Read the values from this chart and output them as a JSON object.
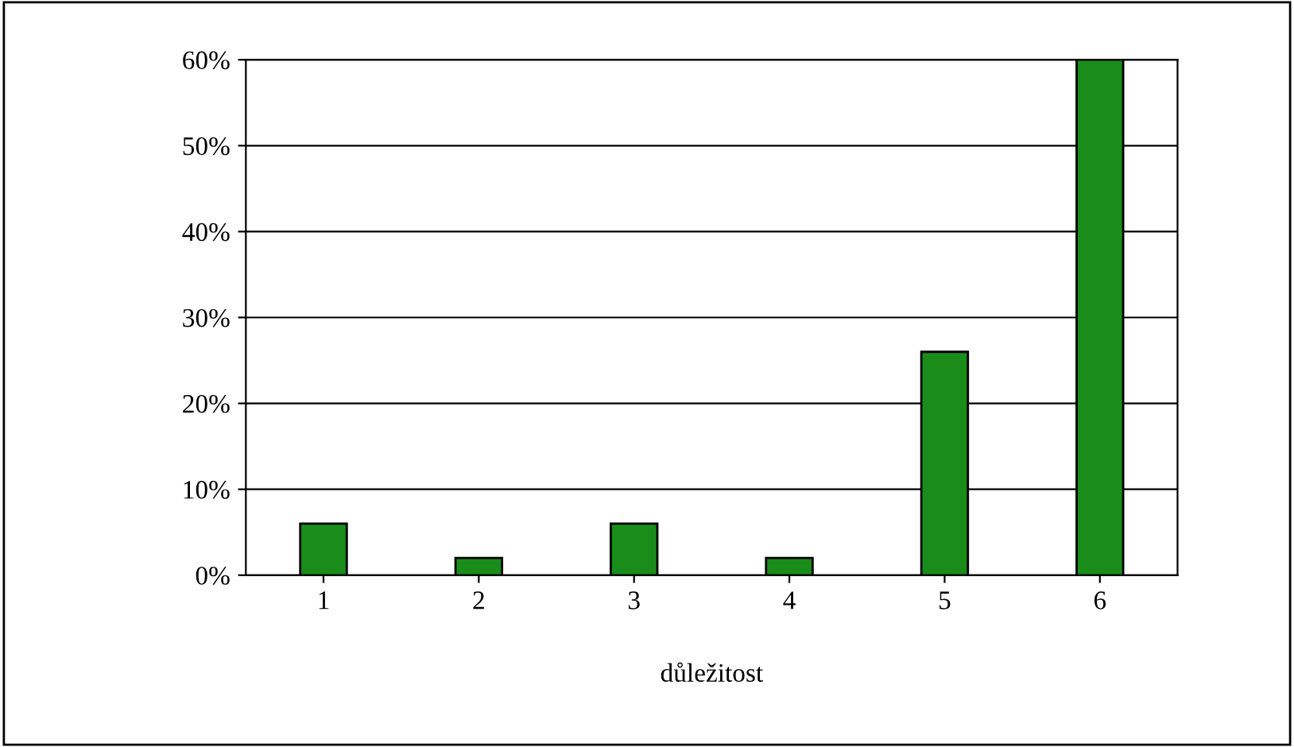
{
  "chart_data": {
    "type": "bar",
    "xlabel": "důležitost",
    "categories": [
      "1",
      "2",
      "3",
      "4",
      "5",
      "6"
    ],
    "values": [
      6,
      2,
      6,
      2,
      26,
      60
    ],
    "color": "#1a8c1a",
    "ylim": [
      0,
      60
    ],
    "yticks": [
      {
        "value": 0,
        "label": "0%"
      },
      {
        "value": 10,
        "label": "10%"
      },
      {
        "value": 20,
        "label": "20%"
      },
      {
        "value": 30,
        "label": "30%"
      },
      {
        "value": 40,
        "label": "40%"
      },
      {
        "value": 50,
        "label": "50%"
      },
      {
        "value": 60,
        "label": "60%"
      }
    ],
    "grid": "y",
    "legend": false
  }
}
